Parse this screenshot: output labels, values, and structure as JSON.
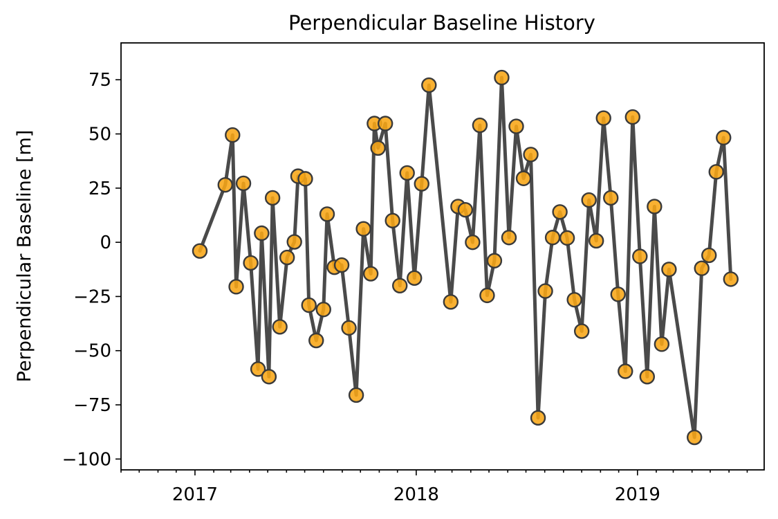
{
  "chart_data": {
    "type": "line",
    "title": "Perpendicular Baseline History",
    "xlabel": "",
    "ylabel": "Perpendicular Baseline [m]",
    "xlim": [
      "2016-09-01",
      "2019-07-29"
    ],
    "ylim": [
      -105,
      92
    ],
    "y_ticks": [
      75,
      50,
      25,
      0,
      -25,
      -50,
      -75,
      -100
    ],
    "y_tick_labels": [
      "75",
      "50",
      "25",
      "0",
      "−25",
      "−50",
      "−75",
      "−100"
    ],
    "x_major_ticks": [
      "2017-01-01",
      "2018-01-01",
      "2019-01-01"
    ],
    "x_tick_labels": [
      "2017",
      "2018",
      "2019"
    ],
    "x_minor_ticks": "monthly",
    "grid": false,
    "marker_color": "#f8a616",
    "line_color": "#404040",
    "series": [
      {
        "points": [
          {
            "x": "2017-01-09",
            "y": -4
          },
          {
            "x": "2017-02-20",
            "y": 26.5
          },
          {
            "x": "2017-03-04",
            "y": 49.5
          },
          {
            "x": "2017-03-10",
            "y": -20.5
          },
          {
            "x": "2017-03-22",
            "y": 27.2
          },
          {
            "x": "2017-04-03",
            "y": -9.5
          },
          {
            "x": "2017-04-15",
            "y": -58.5
          },
          {
            "x": "2017-04-21",
            "y": 4.2
          },
          {
            "x": "2017-05-03",
            "y": -62
          },
          {
            "x": "2017-05-09",
            "y": 20.5
          },
          {
            "x": "2017-05-21",
            "y": -39
          },
          {
            "x": "2017-06-02",
            "y": -7
          },
          {
            "x": "2017-06-14",
            "y": 0.2
          },
          {
            "x": "2017-06-20",
            "y": 30.5
          },
          {
            "x": "2017-07-02",
            "y": 29.3
          },
          {
            "x": "2017-07-08",
            "y": -29
          },
          {
            "x": "2017-07-20",
            "y": -45.3
          },
          {
            "x": "2017-08-01",
            "y": -31
          },
          {
            "x": "2017-08-07",
            "y": 13
          },
          {
            "x": "2017-08-19",
            "y": -11.5
          },
          {
            "x": "2017-08-31",
            "y": -10.5
          },
          {
            "x": "2017-09-12",
            "y": -39.5
          },
          {
            "x": "2017-09-24",
            "y": -70.5
          },
          {
            "x": "2017-10-06",
            "y": 6.2
          },
          {
            "x": "2017-10-18",
            "y": -14.5
          },
          {
            "x": "2017-10-24",
            "y": 54.8
          },
          {
            "x": "2017-10-30",
            "y": 43.5
          },
          {
            "x": "2017-11-11",
            "y": 54.8
          },
          {
            "x": "2017-11-23",
            "y": 10
          },
          {
            "x": "2017-12-05",
            "y": -20
          },
          {
            "x": "2017-12-17",
            "y": 32
          },
          {
            "x": "2017-12-29",
            "y": -16.5
          },
          {
            "x": "2018-01-10",
            "y": 27
          },
          {
            "x": "2018-01-22",
            "y": 72.5
          },
          {
            "x": "2018-02-27",
            "y": -27.5
          },
          {
            "x": "2018-03-11",
            "y": 16.5
          },
          {
            "x": "2018-03-23",
            "y": 15
          },
          {
            "x": "2018-04-04",
            "y": 0
          },
          {
            "x": "2018-04-16",
            "y": 54
          },
          {
            "x": "2018-04-28",
            "y": -24.5
          },
          {
            "x": "2018-05-10",
            "y": -8.5
          },
          {
            "x": "2018-05-22",
            "y": 76
          },
          {
            "x": "2018-06-03",
            "y": 2.2
          },
          {
            "x": "2018-06-15",
            "y": 53.5
          },
          {
            "x": "2018-06-27",
            "y": 29.5
          },
          {
            "x": "2018-07-09",
            "y": 40.5
          },
          {
            "x": "2018-07-21",
            "y": -81
          },
          {
            "x": "2018-08-02",
            "y": -22.5
          },
          {
            "x": "2018-08-14",
            "y": 2.2
          },
          {
            "x": "2018-08-26",
            "y": 14
          },
          {
            "x": "2018-09-07",
            "y": 2
          },
          {
            "x": "2018-09-19",
            "y": -26.5
          },
          {
            "x": "2018-10-01",
            "y": -41
          },
          {
            "x": "2018-10-13",
            "y": 19.5
          },
          {
            "x": "2018-10-25",
            "y": 0.7
          },
          {
            "x": "2018-11-06",
            "y": 57.3
          },
          {
            "x": "2018-11-18",
            "y": 20.5
          },
          {
            "x": "2018-11-30",
            "y": -24
          },
          {
            "x": "2018-12-12",
            "y": -59.5
          },
          {
            "x": "2018-12-24",
            "y": 57.8
          },
          {
            "x": "2019-01-05",
            "y": -6.5
          },
          {
            "x": "2019-01-17",
            "y": -62
          },
          {
            "x": "2019-01-29",
            "y": 16.5
          },
          {
            "x": "2019-02-10",
            "y": -47
          },
          {
            "x": "2019-02-22",
            "y": -12.5
          },
          {
            "x": "2019-04-05",
            "y": -90
          },
          {
            "x": "2019-04-17",
            "y": -12
          },
          {
            "x": "2019-04-29",
            "y": -6
          },
          {
            "x": "2019-05-11",
            "y": 32.5
          },
          {
            "x": "2019-05-23",
            "y": 48.3
          },
          {
            "x": "2019-06-04",
            "y": -17
          }
        ]
      }
    ]
  }
}
